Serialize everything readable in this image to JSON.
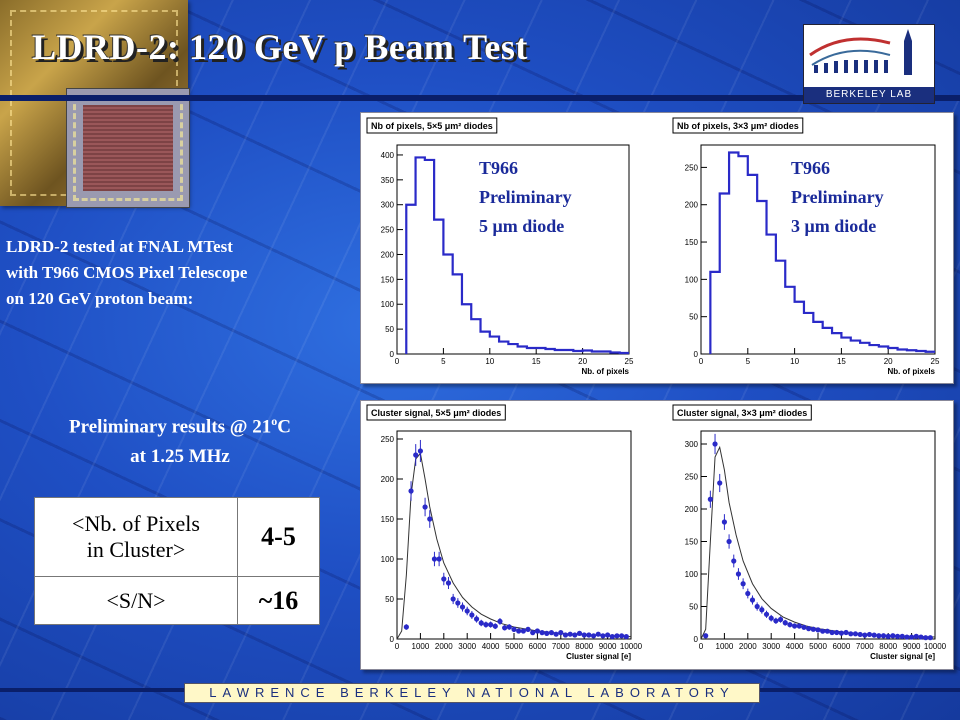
{
  "slide": {
    "title": "LDRD-2: 120 GeV p Beam Test",
    "logo_text": "BERKELEY LAB",
    "description": [
      "LDRD-2 tested at FNAL MTest",
      "with T966 CMOS Pixel Telescope",
      "on 120 GeV proton beam:"
    ],
    "prelim_line1": "Preliminary results @ 21",
    "prelim_sup": "o",
    "prelim_unit": "C",
    "prelim_line2": "at 1.25 MHz",
    "table": [
      {
        "label_line1": "<Nb. of Pixels",
        "label_line2": "in Cluster>",
        "value": "4-5"
      },
      {
        "label_line1": "<S/N>",
        "label_line2": "",
        "value": "~16"
      }
    ],
    "footer": "LAWRENCE BERKELEY NATIONAL LABORATORY",
    "colors": {
      "background": "#1f4fc4",
      "plot_line": "#2a2ac8",
      "annotation": "#1a2a9a"
    }
  },
  "chart_data": [
    {
      "type": "line",
      "title": "Nb of pixels, 5×5 μm² diodes",
      "xlabel": "Nb. of pixels",
      "ylabel": "",
      "xlim": [
        0,
        25
      ],
      "ylim": [
        0,
        420
      ],
      "xticks": [
        0,
        5,
        10,
        15,
        20,
        25
      ],
      "yticks": [
        0,
        50,
        100,
        150,
        200,
        250,
        300,
        350,
        400
      ],
      "annotation": [
        "T966",
        "Preliminary",
        "5 μm diode"
      ],
      "bin_edges": [
        1,
        2,
        3,
        4,
        5,
        6,
        7,
        8,
        9,
        10,
        11,
        12,
        13,
        14,
        15,
        16,
        17,
        18,
        19,
        20,
        21,
        22,
        23,
        24,
        25
      ],
      "values": [
        300,
        395,
        390,
        270,
        200,
        160,
        100,
        70,
        45,
        35,
        25,
        20,
        15,
        12,
        12,
        10,
        8,
        8,
        6,
        7,
        5,
        5,
        3,
        2
      ]
    },
    {
      "type": "line",
      "title": "Nb of pixels, 3×3 μm² diodes",
      "xlabel": "Nb. of pixels",
      "ylabel": "",
      "xlim": [
        0,
        25
      ],
      "ylim": [
        0,
        280
      ],
      "xticks": [
        0,
        5,
        10,
        15,
        20,
        25
      ],
      "yticks": [
        0,
        50,
        100,
        150,
        200,
        250
      ],
      "annotation": [
        "T966",
        "Preliminary",
        "3 μm diode"
      ],
      "bin_edges": [
        1,
        2,
        3,
        4,
        5,
        6,
        7,
        8,
        9,
        10,
        11,
        12,
        13,
        14,
        15,
        16,
        17,
        18,
        19,
        20,
        21,
        22,
        23,
        24,
        25
      ],
      "values": [
        110,
        215,
        270,
        265,
        240,
        205,
        160,
        125,
        90,
        70,
        55,
        43,
        35,
        28,
        22,
        18,
        15,
        12,
        10,
        8,
        6,
        5,
        4,
        3
      ]
    },
    {
      "type": "scatter",
      "title": "Cluster signal, 5×5 μm² diodes",
      "xlabel": "Cluster signal [e]",
      "ylabel": "",
      "xlim": [
        0,
        10000
      ],
      "ylim": [
        0,
        260
      ],
      "xticks": [
        0,
        1000,
        2000,
        3000,
        4000,
        5000,
        6000,
        7000,
        8000,
        9000,
        10000
      ],
      "yticks": [
        0,
        50,
        100,
        150,
        200,
        250
      ],
      "x": [
        400,
        600,
        800,
        1000,
        1200,
        1400,
        1600,
        1800,
        2000,
        2200,
        2400,
        2600,
        2800,
        3000,
        3200,
        3400,
        3600,
        3800,
        4000,
        4200,
        4400,
        4600,
        4800,
        5000,
        5200,
        5400,
        5600,
        5800,
        6000,
        6200,
        6400,
        6600,
        6800,
        7000,
        7200,
        7400,
        7600,
        7800,
        8000,
        8200,
        8400,
        8600,
        8800,
        9000,
        9200,
        9400,
        9600,
        9800
      ],
      "y": [
        15,
        185,
        230,
        235,
        165,
        150,
        100,
        100,
        75,
        70,
        50,
        45,
        40,
        35,
        30,
        25,
        20,
        18,
        18,
        16,
        22,
        14,
        15,
        12,
        10,
        10,
        12,
        8,
        10,
        8,
        7,
        8,
        6,
        8,
        5,
        6,
        5,
        7,
        5,
        5,
        4,
        6,
        4,
        5,
        3,
        4,
        4,
        3
      ],
      "fit_x": [
        0,
        200,
        400,
        600,
        800,
        1000,
        1200,
        1400,
        1700,
        2000,
        2400,
        2800,
        3200,
        3600,
        4000,
        4500,
        5000,
        6000,
        7000,
        8000,
        9000,
        10000
      ],
      "fit_y": [
        0,
        10,
        80,
        180,
        225,
        232,
        200,
        165,
        125,
        95,
        70,
        52,
        40,
        31,
        25,
        19,
        15,
        10,
        7,
        5,
        4,
        3
      ]
    },
    {
      "type": "scatter",
      "title": "Cluster signal, 3×3 μm² diodes",
      "xlabel": "Cluster signal [e]",
      "ylabel": "",
      "xlim": [
        0,
        10000
      ],
      "ylim": [
        0,
        320
      ],
      "xticks": [
        0,
        1000,
        2000,
        3000,
        4000,
        5000,
        6000,
        7000,
        8000,
        9000,
        10000
      ],
      "yticks": [
        0,
        50,
        100,
        150,
        200,
        250,
        300
      ],
      "x": [
        200,
        400,
        600,
        800,
        1000,
        1200,
        1400,
        1600,
        1800,
        2000,
        2200,
        2400,
        2600,
        2800,
        3000,
        3200,
        3400,
        3600,
        3800,
        4000,
        4200,
        4400,
        4600,
        4800,
        5000,
        5200,
        5400,
        5600,
        5800,
        6000,
        6200,
        6400,
        6600,
        6800,
        7000,
        7200,
        7400,
        7600,
        7800,
        8000,
        8200,
        8400,
        8600,
        8800,
        9000,
        9200,
        9400,
        9600,
        9800
      ],
      "y": [
        5,
        215,
        300,
        240,
        180,
        150,
        120,
        100,
        85,
        70,
        60,
        50,
        45,
        38,
        32,
        28,
        30,
        25,
        22,
        20,
        20,
        18,
        16,
        15,
        14,
        12,
        12,
        10,
        10,
        9,
        10,
        8,
        8,
        7,
        6,
        7,
        6,
        5,
        5,
        4,
        5,
        4,
        4,
        3,
        3,
        4,
        3,
        2,
        2
      ],
      "fit_x": [
        0,
        200,
        400,
        600,
        800,
        1000,
        1200,
        1500,
        1800,
        2200,
        2600,
        3000,
        3500,
        4000,
        4500,
        5000,
        6000,
        7000,
        8000,
        9000,
        10000
      ],
      "fit_y": [
        0,
        15,
        150,
        280,
        295,
        260,
        210,
        160,
        120,
        85,
        62,
        47,
        34,
        26,
        20,
        16,
        11,
        7,
        5,
        4,
        3
      ]
    }
  ]
}
